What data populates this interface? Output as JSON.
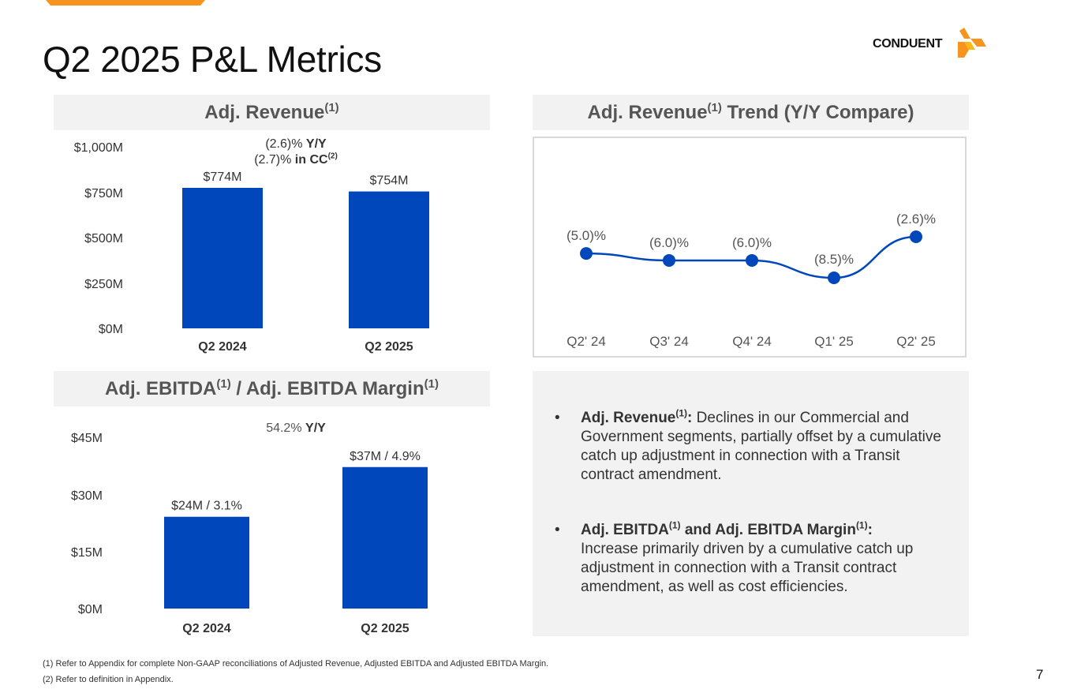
{
  "slide": {
    "title": "Q2 2025 P&L Metrics",
    "page_number": "7",
    "accent_color": "#F7941D",
    "bar_color": "#0047BB",
    "line_color": "#0047BB"
  },
  "logo": {
    "text": "CONDUENT"
  },
  "revenue_panel": {
    "title": "Adj. Revenue",
    "title_sup": "(1)",
    "yoy_value": "(2.6)%",
    "yoy_label": "Y/Y",
    "cc_value": "(2.7)%",
    "cc_label": "in CC",
    "cc_sup": "(2)"
  },
  "trend_panel": {
    "title_prefix": "Adj. Revenue",
    "title_sup": "(1)",
    "title_suffix": " Trend (Y/Y Compare)"
  },
  "ebitda_panel": {
    "title_a": "Adj. EBITDA",
    "title_sup_a": "(1)",
    "title_b": " / Adj. EBITDA Margin",
    "title_sup_b": "(1)",
    "yoy_value": "54.2%",
    "yoy_label": "Y/Y"
  },
  "chart_data": [
    {
      "type": "bar",
      "title": "Adj. Revenue(1)",
      "categories": [
        "Q2 2024",
        "Q2 2025"
      ],
      "values": [
        774,
        754
      ],
      "data_labels": [
        "$774M",
        "$754M"
      ],
      "unit": "$M",
      "ylim": [
        0,
        1000
      ],
      "yticks": [
        0,
        250,
        500,
        750,
        1000
      ],
      "ytick_labels": [
        "$0M",
        "$250M",
        "$500M",
        "$750M",
        "$1,000M"
      ]
    },
    {
      "type": "line",
      "title": "Adj. Revenue(1) Trend (Y/Y Compare)",
      "categories": [
        "Q2' 24",
        "Q3' 24",
        "Q4' 24",
        "Q1' 25",
        "Q2' 25"
      ],
      "values": [
        -5.0,
        -6.0,
        -6.0,
        -8.5,
        -2.6
      ],
      "data_labels": [
        "(5.0)%",
        "(6.0)%",
        "(6.0)%",
        "(8.5)%",
        "(2.6)%"
      ],
      "unit": "%"
    },
    {
      "type": "bar",
      "title": "Adj. EBITDA(1) / Adj. EBITDA Margin(1)",
      "categories": [
        "Q2 2024",
        "Q2 2025"
      ],
      "values": [
        24,
        37
      ],
      "margins": [
        3.1,
        4.9
      ],
      "data_labels": [
        "$24M / 3.1%",
        "$37M / 4.9%"
      ],
      "unit": "$M",
      "ylim": [
        0,
        45
      ],
      "yticks": [
        0,
        15,
        30,
        45
      ],
      "ytick_labels": [
        "$0M",
        "$15M",
        "$30M",
        "$45M"
      ]
    }
  ],
  "notes": {
    "bullet_char": "•",
    "items": [
      {
        "label": "Adj. Revenue",
        "label_sup": "(1)",
        "colon": ":",
        "text": " Declines in our Commercial and Government segments, partially offset by a cumulative catch up adjustment in connection with a Transit contract amendment."
      },
      {
        "label_a": "Adj. EBITDA",
        "label_sup_a": "(1)",
        "label_b": " and Adj. EBITDA Margin",
        "label_sup_b": "(1)",
        "colon": ":",
        "text": "Increase primarily driven by a cumulative catch up adjustment in connection with a Transit contract amendment, as well as cost efficiencies."
      }
    ]
  },
  "footnotes": [
    "(1) Refer to Appendix for complete Non-GAAP reconciliations of Adjusted Revenue, Adjusted EBITDA and Adjusted EBITDA Margin.",
    "(2) Refer to definition in Appendix."
  ]
}
